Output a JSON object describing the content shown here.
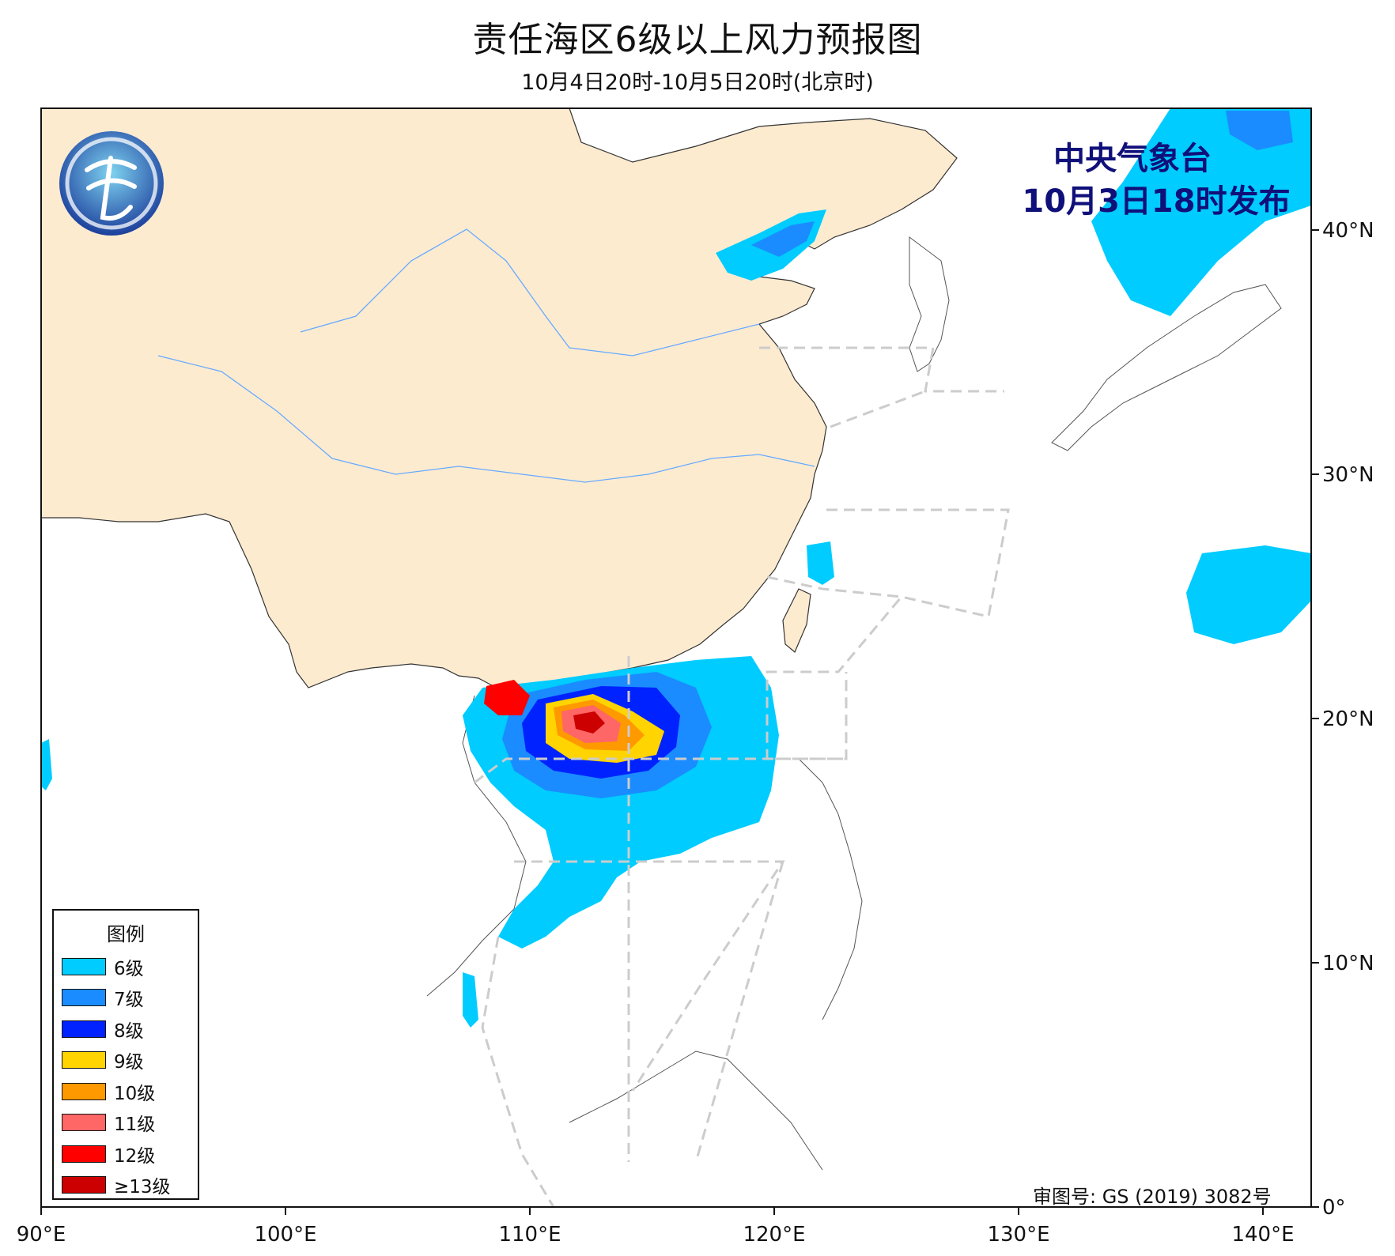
{
  "header": {
    "title": "责任海区6级以上风力预报图",
    "subtitle": "10月4日20时-10月5日20时(北京时)"
  },
  "issuer": {
    "name": "中央气象台",
    "issued": "10月3日18时发布"
  },
  "axes": {
    "lon_labels": [
      "90°E",
      "100°E",
      "110°E",
      "120°E",
      "130°E",
      "140°E"
    ],
    "lat_labels": [
      "0°",
      "10°N",
      "20°N",
      "30°N",
      "40°N"
    ],
    "lon_range": [
      90,
      142
    ],
    "lat_range": [
      0,
      45
    ]
  },
  "legend": {
    "title": "图例",
    "items": [
      {
        "label": "6级",
        "color": "#00ccff"
      },
      {
        "label": "7级",
        "color": "#1a8cff"
      },
      {
        "label": "8级",
        "color": "#0022ff"
      },
      {
        "label": "9级",
        "color": "#ffd400"
      },
      {
        "label": "10级",
        "color": "#ff9900"
      },
      {
        "label": "11级",
        "color": "#ff6666"
      },
      {
        "label": "12级",
        "color": "#ff0000"
      },
      {
        "label": "≥13级",
        "color": "#cc0000"
      }
    ]
  },
  "approval": "审图号: GS (2019) 3082号",
  "colors": {
    "land_china": "#fdebd0",
    "border": "#333333",
    "river": "#66aaff",
    "zone_line": "#cccccc"
  }
}
